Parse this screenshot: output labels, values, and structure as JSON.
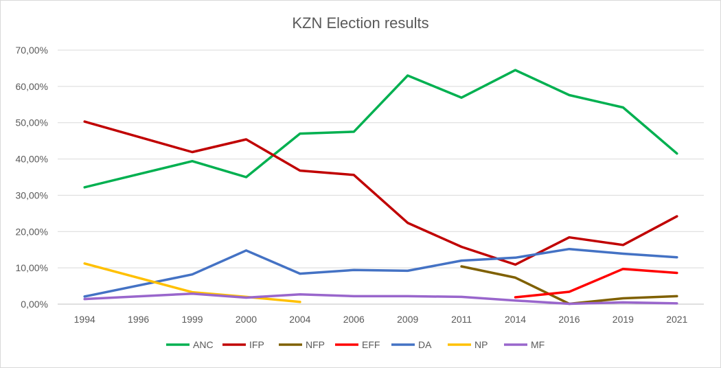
{
  "chart_data": {
    "type": "line",
    "title": "KZN Election results",
    "categories": [
      "1994",
      "1996",
      "1999",
      "2000",
      "2004",
      "2006",
      "2009",
      "2011",
      "2014",
      "2016",
      "2019",
      "2021"
    ],
    "y_tick_labels": [
      "0,00%",
      "10,00%",
      "20,00%",
      "30,00%",
      "40,00%",
      "50,00%",
      "60,00%",
      "70,00%"
    ],
    "ylim": [
      0,
      70
    ],
    "y_unit": "%",
    "grid": true,
    "legend_position": "bottom",
    "series": [
      {
        "name": "ANC",
        "color": "#00b050",
        "values": [
          32.2,
          null,
          39.4,
          35.0,
          47.0,
          47.5,
          63.0,
          56.9,
          64.5,
          57.6,
          54.2,
          41.5
        ]
      },
      {
        "name": "IFP",
        "color": "#c00000",
        "values": [
          50.3,
          null,
          41.9,
          45.4,
          36.8,
          35.6,
          22.4,
          15.8,
          10.9,
          18.4,
          16.3,
          24.2
        ]
      },
      {
        "name": "NFP",
        "color": "#7f6000",
        "values": [
          null,
          null,
          null,
          null,
          null,
          null,
          null,
          10.4,
          7.3,
          0.1,
          1.6,
          2.2
        ]
      },
      {
        "name": "EFF",
        "color": "#ff0000",
        "values": [
          null,
          null,
          null,
          null,
          null,
          null,
          null,
          null,
          1.9,
          3.4,
          9.7,
          8.6
        ]
      },
      {
        "name": "DA",
        "color": "#4472c4",
        "values": [
          2.1,
          null,
          8.2,
          14.8,
          8.4,
          9.4,
          9.2,
          12.0,
          12.8,
          15.2,
          13.9,
          12.9
        ]
      },
      {
        "name": "NP",
        "color": "#ffc000",
        "values": [
          11.2,
          null,
          3.3,
          2.0,
          0.6,
          null,
          null,
          null,
          null,
          null,
          null,
          null
        ]
      },
      {
        "name": "MF",
        "color": "#9966cc",
        "values": [
          1.4,
          null,
          2.9,
          1.8,
          2.7,
          2.2,
          2.2,
          2.0,
          1.0,
          0.1,
          0.5,
          0.2
        ]
      }
    ]
  }
}
